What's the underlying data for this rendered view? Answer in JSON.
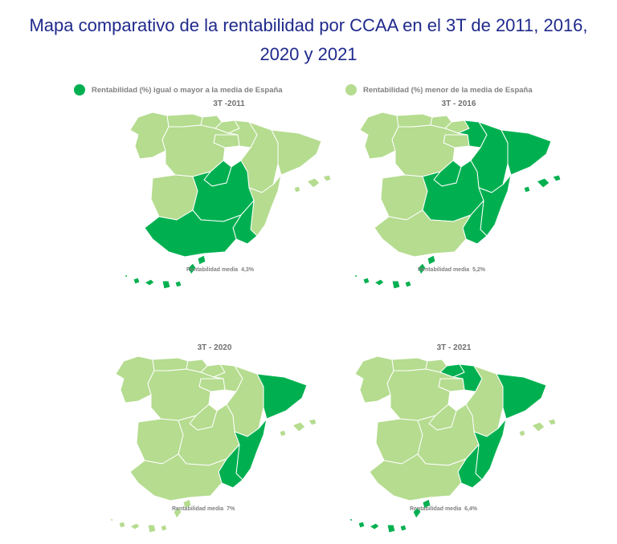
{
  "title_line1": "Mapa comparativo de la rentabilidad por CCAA en el 3T de 2011, 2016,",
  "title_line2": "2020 y 2021",
  "legend": {
    "above": "Rentabilidad (%) igual o mayor a la media de España",
    "below": "Rentabilidad (%) menor de la media de España"
  },
  "colors": {
    "above": "#00b050",
    "below": "#b5dc8f",
    "border": "#ffffff",
    "title": "#1f2a8c"
  },
  "maps": [
    {
      "period": "3T -2011",
      "avg_label": "Rentabilidad media",
      "avg_value": "4,3%",
      "above_regions": [
        "castilla-la-mancha",
        "madrid",
        "andalucia",
        "murcia",
        "canarias"
      ]
    },
    {
      "period": "3T - 2016",
      "avg_label": "Rentabilidad media",
      "avg_value": "5,2%",
      "above_regions": [
        "castilla-la-mancha",
        "madrid",
        "aragon",
        "cataluna",
        "valencia",
        "navarra",
        "murcia",
        "baleares",
        "canarias"
      ]
    },
    {
      "period": "3T - 2020",
      "avg_label": "Rentabilidad media",
      "avg_value": "7%",
      "above_regions": [
        "cataluna",
        "valencia",
        "murcia"
      ]
    },
    {
      "period": "3T - 2021",
      "avg_label": "Rentabilidad media",
      "avg_value": "6,4%",
      "above_regions": [
        "pais-vasco",
        "navarra",
        "cataluna",
        "valencia",
        "murcia",
        "canarias"
      ]
    }
  ]
}
